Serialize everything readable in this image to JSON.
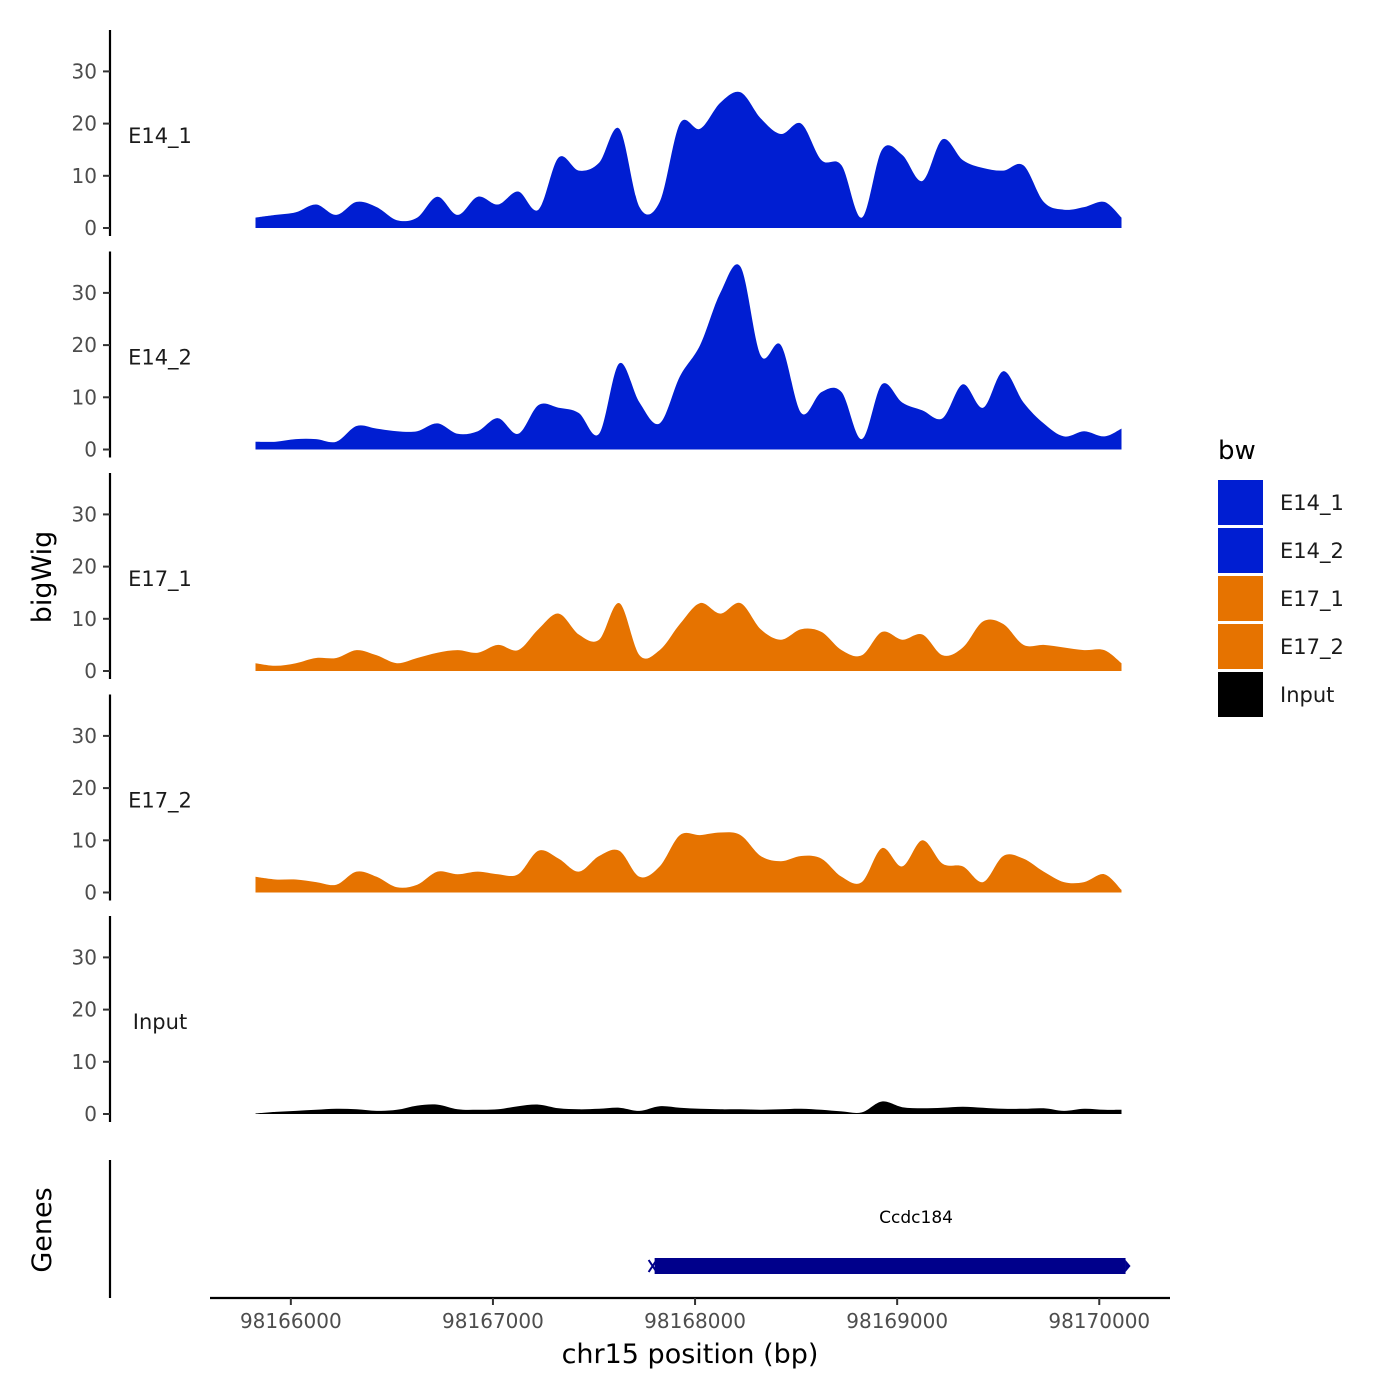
{
  "chart_data": {
    "type": "area",
    "y_axis_title": "bigWig",
    "genes_axis_title": "Genes",
    "xlabel": "chr15 position (bp)",
    "xlim": [
      98165600,
      98170350
    ],
    "x_ticks": [
      98166000,
      98167000,
      98168000,
      98169000,
      98170000
    ],
    "x_tick_labels": [
      "98166000",
      "98167000",
      "98168000",
      "98169000",
      "98170000"
    ],
    "ylim": [
      0,
      37
    ],
    "y_ticks": [
      0,
      10,
      20,
      30
    ],
    "y_tick_labels": [
      "0",
      "10",
      "20",
      "30"
    ],
    "x": [
      98165825,
      98165925,
      98166025,
      98166125,
      98166225,
      98166325,
      98166425,
      98166525,
      98166625,
      98166725,
      98166825,
      98166925,
      98167025,
      98167125,
      98167225,
      98167325,
      98167425,
      98167525,
      98167625,
      98167725,
      98167825,
      98167925,
      98168025,
      98168125,
      98168225,
      98168325,
      98168425,
      98168525,
      98168625,
      98168725,
      98168825,
      98168925,
      98169025,
      98169125,
      98169225,
      98169325,
      98169425,
      98169525,
      98169625,
      98169725,
      98169825,
      98169925,
      98170025,
      98170110
    ],
    "series": [
      {
        "name": "E14_1",
        "color": "#001ed2",
        "values": [
          2,
          2.5,
          3,
          4.5,
          2.5,
          5,
          4,
          1.5,
          2,
          6,
          2.5,
          6,
          4.5,
          7,
          3.5,
          13.5,
          11,
          12.5,
          19,
          4,
          5,
          20,
          19,
          24,
          26,
          21,
          18,
          20,
          13,
          12,
          2,
          15,
          14,
          9,
          17,
          13,
          11.5,
          11,
          12,
          5,
          3.5,
          4,
          5,
          2
        ]
      },
      {
        "name": "E14_2",
        "color": "#001ed2",
        "values": [
          1.5,
          1.5,
          2,
          2,
          1.5,
          4.5,
          4,
          3.5,
          3.5,
          5,
          3,
          3.5,
          6,
          3,
          8.5,
          8,
          7,
          3,
          16.5,
          9,
          5,
          14,
          20,
          30,
          35,
          18,
          20,
          7,
          11,
          11,
          2,
          12.5,
          9,
          7.5,
          6,
          12.5,
          8,
          15,
          9,
          5,
          2.5,
          3.5,
          2.5,
          4
        ]
      },
      {
        "name": "E17_1",
        "color": "#e67300",
        "values": [
          1.5,
          1,
          1.5,
          2.5,
          2.5,
          4,
          3,
          1.5,
          2.5,
          3.5,
          4,
          3.5,
          5,
          4,
          8,
          11,
          7,
          6,
          13,
          3,
          4,
          9,
          13,
          11,
          13,
          8,
          6,
          8,
          7.5,
          4,
          3,
          7.5,
          6,
          7,
          3,
          4.5,
          9.5,
          9,
          5,
          5,
          4.5,
          4,
          4,
          1.5
        ]
      },
      {
        "name": "E17_2",
        "color": "#e67300",
        "values": [
          3,
          2.5,
          2.5,
          2,
          1.5,
          4,
          3,
          1,
          1.5,
          4,
          3.5,
          4,
          3.5,
          3.5,
          8,
          6.5,
          4,
          7,
          8,
          3,
          5,
          11,
          11,
          11.5,
          11,
          7,
          6,
          7,
          6.5,
          3,
          2,
          8.5,
          5,
          10,
          5.5,
          5,
          2,
          7,
          6.5,
          4,
          2,
          2,
          3.5,
          0.5
        ]
      },
      {
        "name": "Input",
        "color": "#000000",
        "values": [
          0.1,
          0.4,
          0.6,
          0.8,
          1,
          0.9,
          0.6,
          0.8,
          1.6,
          1.8,
          0.9,
          0.8,
          0.9,
          1.5,
          1.8,
          1.1,
          0.9,
          1,
          1.2,
          0.6,
          1.5,
          1.2,
          1,
          0.9,
          0.9,
          0.8,
          0.9,
          1,
          0.8,
          0.5,
          0.3,
          2.4,
          1.3,
          1.1,
          1.2,
          1.4,
          1.2,
          1,
          1,
          1.1,
          0.6,
          1,
          0.8,
          0.8
        ]
      }
    ],
    "genes": [
      {
        "name": "Ccdc184",
        "start": 98167800,
        "end": 98170130,
        "color": "#00008b"
      }
    ],
    "legend": {
      "title": "bw",
      "position": "right",
      "entries": [
        {
          "label": "E14_1",
          "color": "#001ed2"
        },
        {
          "label": "E14_2",
          "color": "#001ed2"
        },
        {
          "label": "E17_1",
          "color": "#e67300"
        },
        {
          "label": "E17_2",
          "color": "#e67300"
        },
        {
          "label": "Input",
          "color": "#000000"
        }
      ]
    },
    "grid": false
  }
}
